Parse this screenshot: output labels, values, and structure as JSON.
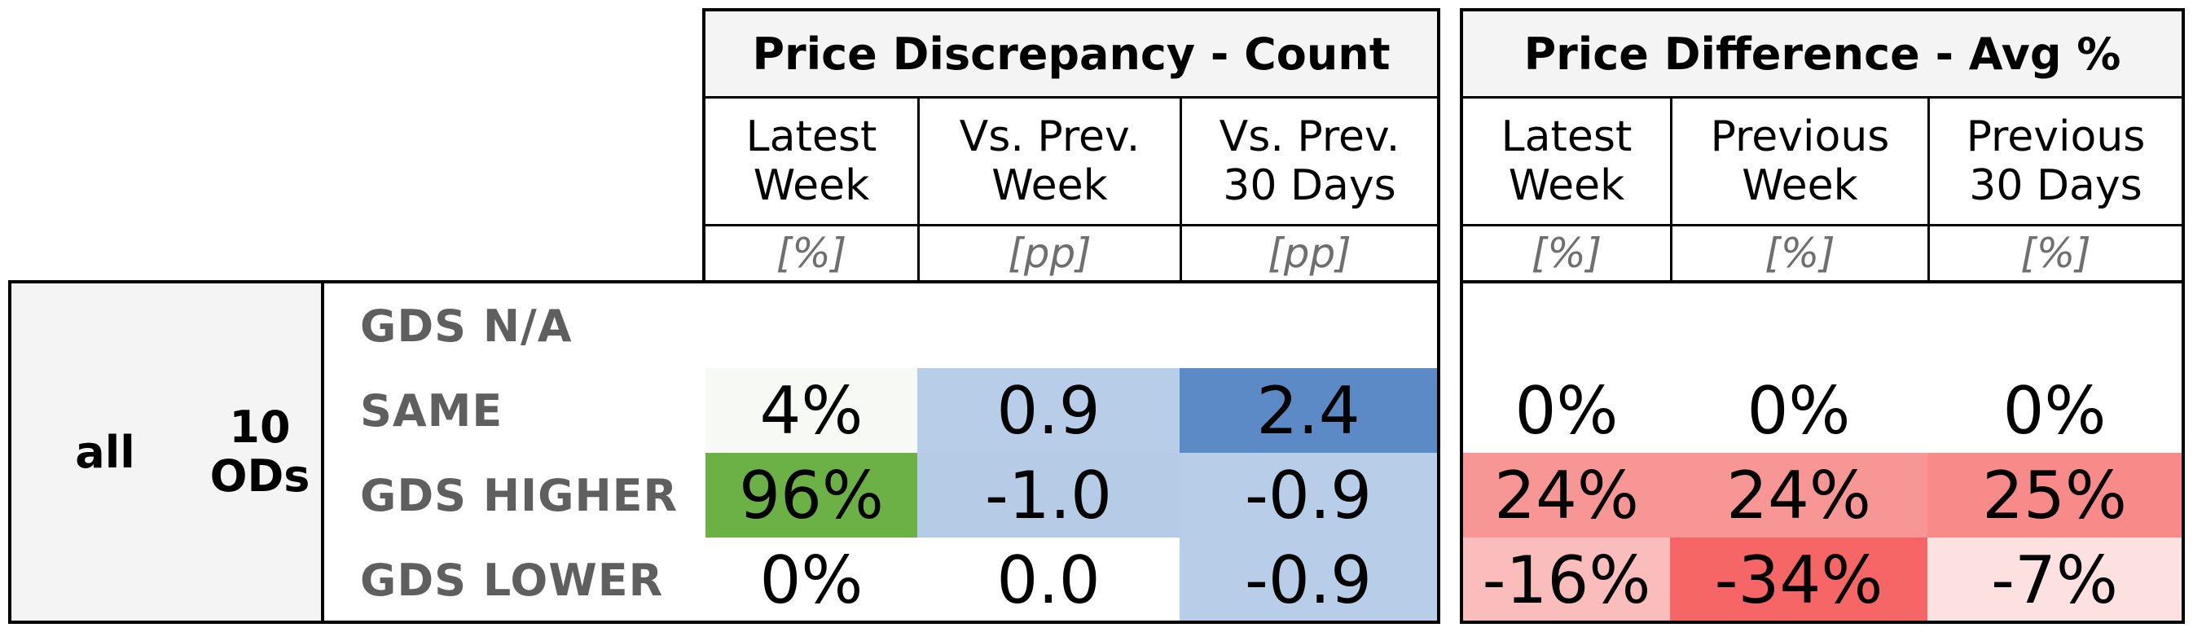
{
  "panels": [
    {
      "title": "Price Discrepancy - Count",
      "columns": [
        {
          "label": "Latest\nWeek",
          "unit": "[%]"
        },
        {
          "label": "Vs. Prev.\nWeek",
          "unit": "[pp]"
        },
        {
          "label": "Vs. Prev.\n30 Days",
          "unit": "[pp]"
        }
      ]
    },
    {
      "title": "Price Difference - Avg %",
      "columns": [
        {
          "label": "Latest\nWeek",
          "unit": "[%]"
        },
        {
          "label": "Previous\nWeek",
          "unit": "[%]"
        },
        {
          "label": "Previous\n30 Days",
          "unit": "[%]"
        }
      ]
    }
  ],
  "row_group": {
    "level1": "all",
    "level2": "10\nODs"
  },
  "rows": [
    {
      "label": "GDS N/A",
      "values": [
        "",
        "",
        "",
        "",
        "",
        ""
      ]
    },
    {
      "label": "SAME",
      "values": [
        "4%",
        "0.9",
        "2.4",
        "0%",
        "0%",
        "0%"
      ]
    },
    {
      "label": "GDS HIGHER",
      "values": [
        "96%",
        "-1.0",
        "-0.9",
        "24%",
        "24%",
        "25%"
      ]
    },
    {
      "label": "GDS LOWER",
      "values": [
        "0%",
        "0.0",
        "-0.9",
        "-16%",
        "-34%",
        "-7%"
      ]
    }
  ],
  "colors": {
    "header_bg": "#f4f4f4",
    "row_header_bg": "#f4f4f4",
    "cell_fills": [
      [
        "#ffffff",
        "#ffffff",
        "#ffffff",
        "#ffffff",
        "#ffffff",
        "#ffffff"
      ],
      [
        "#f7f9f5",
        "#b8cde7",
        "#5b8ac6",
        "#ffffff",
        "#ffffff",
        "#ffffff"
      ],
      [
        "#6bb145",
        "#b6cce6",
        "#b8cde7",
        "#f89696",
        "#f89696",
        "#f98a8a"
      ],
      [
        "#ffffff",
        "#ffffff",
        "#b8cde7",
        "#fbbcbc",
        "#f66666",
        "#fde0e0"
      ]
    ]
  }
}
